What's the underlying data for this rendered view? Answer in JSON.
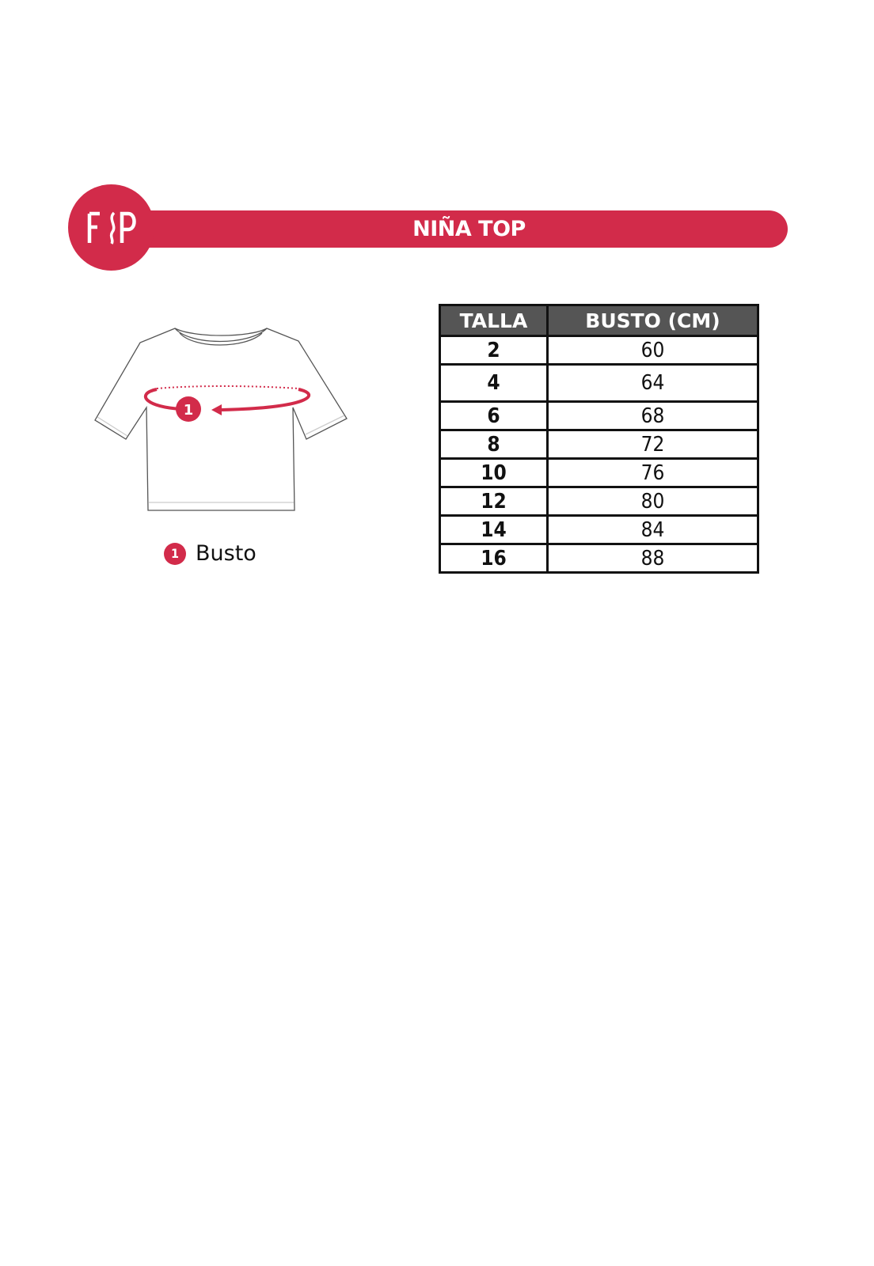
{
  "header": {
    "title": "NIÑA TOP",
    "logo_text": "FSP",
    "brand_color": "#d22b4a"
  },
  "diagram": {
    "marker": "1",
    "legend": [
      {
        "number": "1",
        "label": "Busto"
      }
    ]
  },
  "table": {
    "columns": [
      "TALLA",
      "BUSTO (CM)"
    ],
    "rows": [
      {
        "talla": "2",
        "busto": "60"
      },
      {
        "talla": "4",
        "busto": "64"
      },
      {
        "talla": "6",
        "busto": "68"
      },
      {
        "talla": "8",
        "busto": "72"
      },
      {
        "talla": "10",
        "busto": "76"
      },
      {
        "talla": "12",
        "busto": "80"
      },
      {
        "talla": "14",
        "busto": "84"
      },
      {
        "talla": "16",
        "busto": "88"
      }
    ]
  }
}
